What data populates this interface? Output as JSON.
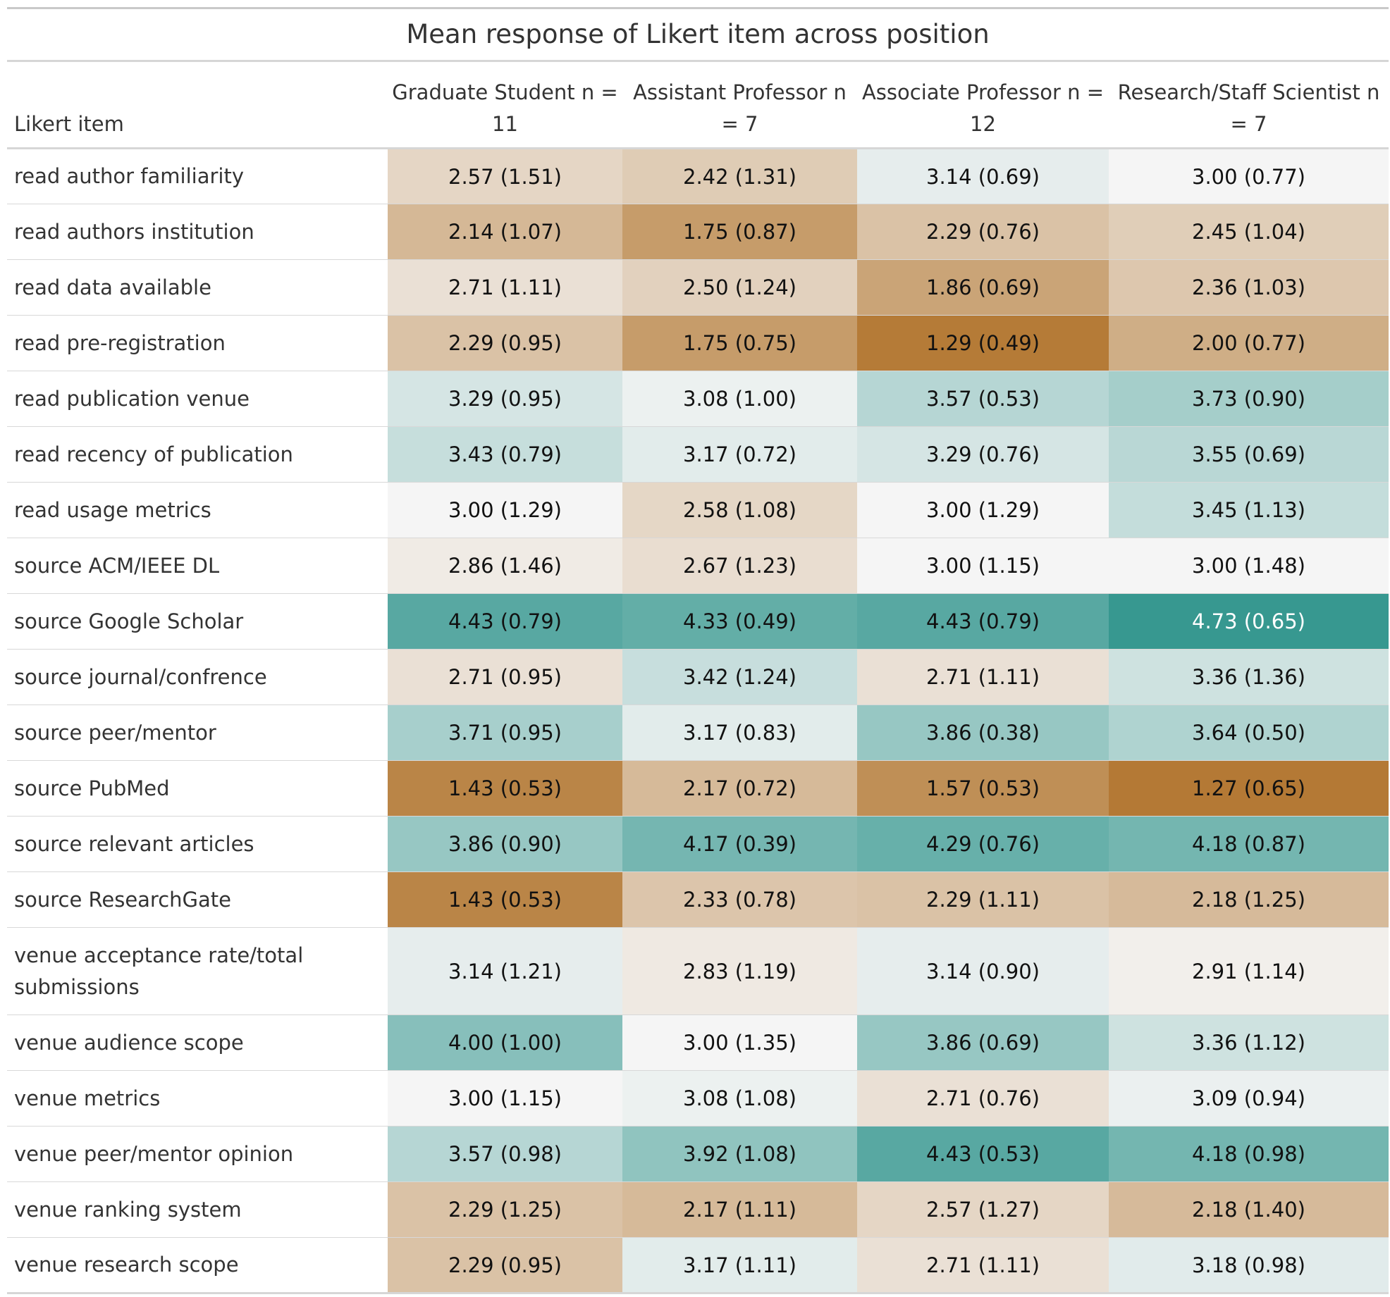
{
  "chart_data": {
    "type": "table",
    "title": "Mean response of Likert item across position",
    "columns": [
      "Likert item",
      "Graduate Student n = 11",
      "Assistant Professor n = 7",
      "Associate Professor n = 12",
      "Research/Staff Scientist n = 7"
    ],
    "rows": [
      {
        "item": "read author familiarity",
        "means": [
          2.57,
          2.42,
          3.14,
          3.0
        ],
        "cells": [
          "2.57 (1.51)",
          "2.42 (1.31)",
          "3.14 (0.69)",
          "3.00 (0.77)"
        ]
      },
      {
        "item": "read authors institution",
        "means": [
          2.14,
          1.75,
          2.29,
          2.45
        ],
        "cells": [
          "2.14 (1.07)",
          "1.75 (0.87)",
          "2.29 (0.76)",
          "2.45 (1.04)"
        ]
      },
      {
        "item": "read data available",
        "means": [
          2.71,
          2.5,
          1.86,
          2.36
        ],
        "cells": [
          "2.71 (1.11)",
          "2.50 (1.24)",
          "1.86 (0.69)",
          "2.36 (1.03)"
        ]
      },
      {
        "item": "read pre-registration",
        "means": [
          2.29,
          1.75,
          1.29,
          2.0
        ],
        "cells": [
          "2.29 (0.95)",
          "1.75 (0.75)",
          "1.29 (0.49)",
          "2.00 (0.77)"
        ]
      },
      {
        "item": "read publication venue",
        "means": [
          3.29,
          3.08,
          3.57,
          3.73
        ],
        "cells": [
          "3.29 (0.95)",
          "3.08 (1.00)",
          "3.57 (0.53)",
          "3.73 (0.90)"
        ]
      },
      {
        "item": "read recency of publication",
        "means": [
          3.43,
          3.17,
          3.29,
          3.55
        ],
        "cells": [
          "3.43 (0.79)",
          "3.17 (0.72)",
          "3.29 (0.76)",
          "3.55 (0.69)"
        ]
      },
      {
        "item": "read usage metrics",
        "means": [
          3.0,
          2.58,
          3.0,
          3.45
        ],
        "cells": [
          "3.00 (1.29)",
          "2.58 (1.08)",
          "3.00 (1.29)",
          "3.45 (1.13)"
        ]
      },
      {
        "item": "source ACM/IEEE DL",
        "means": [
          2.86,
          2.67,
          3.0,
          3.0
        ],
        "cells": [
          "2.86 (1.46)",
          "2.67 (1.23)",
          "3.00 (1.15)",
          "3.00 (1.48)"
        ]
      },
      {
        "item": "source Google Scholar",
        "means": [
          4.43,
          4.33,
          4.43,
          4.73
        ],
        "cells": [
          "4.43 (0.79)",
          "4.33 (0.49)",
          "4.43 (0.79)",
          "4.73 (0.65)"
        ]
      },
      {
        "item": "source journal/confrence",
        "means": [
          2.71,
          3.42,
          2.71,
          3.36
        ],
        "cells": [
          "2.71 (0.95)",
          "3.42 (1.24)",
          "2.71 (1.11)",
          "3.36 (1.36)"
        ]
      },
      {
        "item": "source peer/mentor",
        "means": [
          3.71,
          3.17,
          3.86,
          3.64
        ],
        "cells": [
          "3.71 (0.95)",
          "3.17 (0.83)",
          "3.86 (0.38)",
          "3.64 (0.50)"
        ]
      },
      {
        "item": "source PubMed",
        "means": [
          1.43,
          2.17,
          1.57,
          1.27
        ],
        "cells": [
          "1.43 (0.53)",
          "2.17 (0.72)",
          "1.57 (0.53)",
          "1.27 (0.65)"
        ]
      },
      {
        "item": "source relevant articles",
        "means": [
          3.86,
          4.17,
          4.29,
          4.18
        ],
        "cells": [
          "3.86 (0.90)",
          "4.17 (0.39)",
          "4.29 (0.76)",
          "4.18 (0.87)"
        ]
      },
      {
        "item": "source ResearchGate",
        "means": [
          1.43,
          2.33,
          2.29,
          2.18
        ],
        "cells": [
          "1.43 (0.53)",
          "2.33 (0.78)",
          "2.29 (1.11)",
          "2.18 (1.25)"
        ]
      },
      {
        "item": "venue acceptance rate/total submissions",
        "means": [
          3.14,
          2.83,
          3.14,
          2.91
        ],
        "cells": [
          "3.14 (1.21)",
          "2.83 (1.19)",
          "3.14 (0.90)",
          "2.91 (1.14)"
        ]
      },
      {
        "item": "venue audience scope",
        "means": [
          4.0,
          3.0,
          3.86,
          3.36
        ],
        "cells": [
          "4.00 (1.00)",
          "3.00 (1.35)",
          "3.86 (0.69)",
          "3.36 (1.12)"
        ]
      },
      {
        "item": "venue metrics",
        "means": [
          3.0,
          3.08,
          2.71,
          3.09
        ],
        "cells": [
          "3.00 (1.15)",
          "3.08 (1.08)",
          "2.71 (0.76)",
          "3.09 (0.94)"
        ]
      },
      {
        "item": "venue peer/mentor opinion",
        "means": [
          3.57,
          3.92,
          4.43,
          4.18
        ],
        "cells": [
          "3.57 (0.98)",
          "3.92 (1.08)",
          "4.43 (0.53)",
          "4.18 (0.98)"
        ]
      },
      {
        "item": "venue ranking system",
        "means": [
          2.29,
          2.17,
          2.57,
          2.18
        ],
        "cells": [
          "2.29 (1.25)",
          "2.17 (1.11)",
          "2.57 (1.27)",
          "2.18 (1.40)"
        ]
      },
      {
        "item": "venue research scope",
        "means": [
          2.29,
          3.17,
          2.71,
          3.18
        ],
        "cells": [
          "2.29 (0.95)",
          "3.17 (1.11)",
          "2.71 (1.11)",
          "3.18 (0.98)"
        ]
      }
    ],
    "color_scale": {
      "low": "#b37833",
      "mid": "#f5f5f5",
      "high": "#35978f",
      "range": [
        1,
        5
      ]
    }
  }
}
